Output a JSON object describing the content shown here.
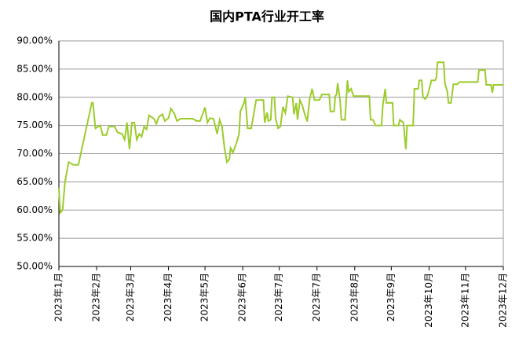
{
  "chart_data": {
    "type": "line",
    "title": "国内PTA行业开工率",
    "color": "#9ccc2c",
    "grid": true,
    "x": [
      0,
      1,
      3,
      5,
      8,
      12,
      16,
      20,
      27,
      28,
      30,
      34,
      36,
      39,
      41,
      46,
      48,
      52,
      54,
      56,
      58,
      60,
      62,
      64,
      66,
      68,
      70,
      72,
      74,
      78,
      80,
      82,
      85,
      87,
      90,
      92,
      95,
      97,
      100,
      110,
      113,
      116,
      120,
      122,
      124,
      127,
      130,
      132,
      134,
      136,
      138,
      140,
      141,
      143,
      146,
      148,
      149,
      152,
      153,
      155,
      158,
      162,
      168,
      169,
      171,
      172,
      174,
      175,
      177,
      178,
      180,
      182,
      184,
      186,
      188,
      192,
      193,
      195,
      196,
      198,
      200,
      202,
      204,
      206,
      208,
      210,
      214,
      216,
      222,
      223,
      226,
      227,
      228,
      229,
      231,
      232,
      235,
      237,
      238,
      240,
      242,
      255,
      256,
      258,
      260,
      265,
      266,
      268,
      269,
      274,
      275,
      279,
      280,
      283,
      285,
      286,
      291,
      292,
      295,
      296,
      298,
      299,
      301,
      303,
      306,
      309,
      310,
      311,
      316,
      317,
      319,
      320,
      322,
      324,
      327,
      329,
      344,
      345,
      350,
      351,
      355,
      356,
      357,
      365
    ],
    "values": [
      64,
      59.5,
      60,
      65,
      68.5,
      68,
      68,
      72,
      79,
      79,
      74.5,
      75,
      73.3,
      73.3,
      74.8,
      74.8,
      73.8,
      73.5,
      72.5,
      75.5,
      70.8,
      75.5,
      75.5,
      72.5,
      73.5,
      73,
      74.8,
      74.3,
      76.8,
      76.2,
      75.3,
      76.5,
      77,
      75.8,
      76.3,
      78,
      77,
      75.8,
      76.2,
      76.2,
      75.8,
      75.8,
      78.2,
      75.5,
      76.3,
      76.2,
      73.5,
      76,
      74.8,
      71,
      68.5,
      69,
      71,
      70.2,
      72,
      73.5,
      77.5,
      79,
      80,
      74.5,
      74.5,
      79.5,
      79.5,
      75.5,
      77.3,
      75.8,
      76,
      80,
      80,
      76.2,
      74.5,
      74.8,
      78.3,
      77.2,
      80.2,
      80,
      77,
      79,
      76,
      79.5,
      78.5,
      77,
      75.7,
      79.7,
      81.5,
      79.5,
      79.5,
      80.5,
      80.5,
      77.5,
      77.5,
      80.2,
      80.5,
      82.5,
      79.3,
      76,
      76,
      83,
      81,
      81.5,
      80.2,
      80.2,
      76,
      76,
      75,
      75,
      78.5,
      81.5,
      79,
      79,
      75,
      75,
      76,
      75.5,
      70.8,
      75,
      75,
      81.5,
      81.5,
      83,
      83,
      80,
      79.7,
      80.5,
      83,
      83,
      83.5,
      86.2,
      86.2,
      82.5,
      81,
      79,
      79,
      82.3,
      82.3,
      82.7,
      82.7,
      84.8,
      84.8,
      82.2,
      82.2,
      80.8,
      82.2,
      82.2
    ],
    "xlim": [
      0,
      365
    ],
    "xticks": [
      {
        "value": 0,
        "label": "2023年1月"
      },
      {
        "value": 31,
        "label": "2023年2月"
      },
      {
        "value": 59,
        "label": "2023年3月"
      },
      {
        "value": 90,
        "label": "2023年4月"
      },
      {
        "value": 120,
        "label": "2023年5月"
      },
      {
        "value": 151,
        "label": "2023年6月"
      },
      {
        "value": 181,
        "label": "2023年7月"
      },
      {
        "value": 212,
        "label": "2023年7月"
      },
      {
        "value": 243,
        "label": "2023年8月"
      },
      {
        "value": 273,
        "label": "2023年9月"
      },
      {
        "value": 304,
        "label": "2023年10月"
      },
      {
        "value": 334,
        "label": "2023年11月"
      },
      {
        "value": 365,
        "label": "2023年12月"
      }
    ],
    "ylim": [
      50,
      90
    ],
    "yticks": [
      {
        "value": 50,
        "label": "50.00%"
      },
      {
        "value": 55,
        "label": "55.00%"
      },
      {
        "value": 60,
        "label": "60.00%"
      },
      {
        "value": 65,
        "label": "65.00%"
      },
      {
        "value": 70,
        "label": "70.00%"
      },
      {
        "value": 75,
        "label": "75.00%"
      },
      {
        "value": 80,
        "label": "80.00%"
      },
      {
        "value": 85,
        "label": "85.00%"
      },
      {
        "value": 90,
        "label": "90.00%"
      }
    ]
  }
}
